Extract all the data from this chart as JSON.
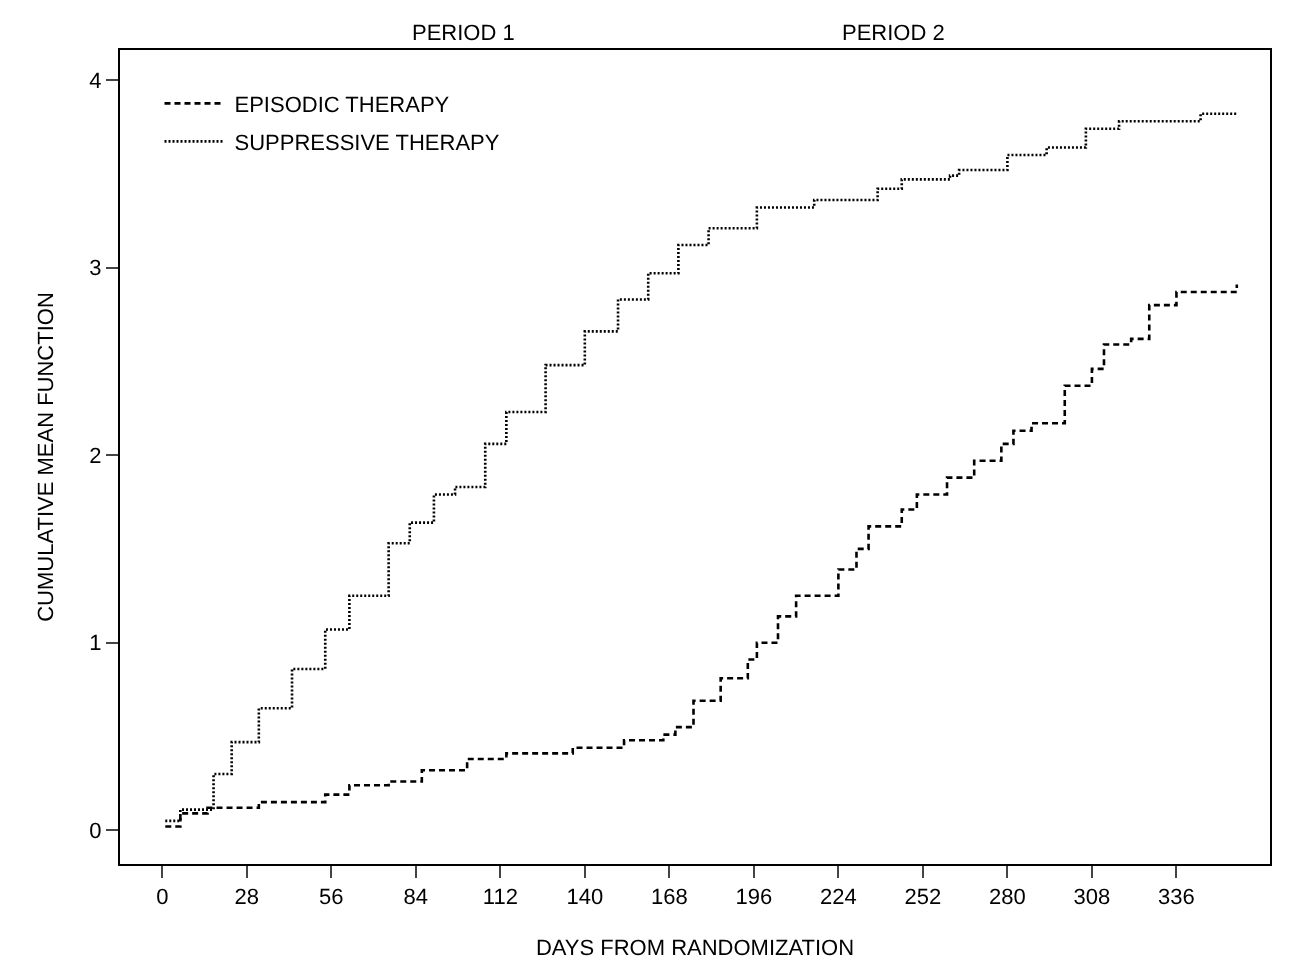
{
  "chart_data": {
    "type": "step",
    "xlabel": "DAYS FROM RANDOMIZATION",
    "ylabel": "CUMULATIVE MEAN FUNCTION",
    "annotations": [
      "PERIOD 1",
      "PERIOD 2"
    ],
    "xlim": [
      -14,
      367
    ],
    "ylim": [
      -0.18,
      4.16
    ],
    "xticks": [
      0,
      28,
      56,
      84,
      112,
      140,
      168,
      196,
      224,
      252,
      280,
      308,
      336
    ],
    "yticks": [
      0,
      1,
      2,
      3,
      4
    ],
    "legend": "top left",
    "marker": "none",
    "series": [
      {
        "name": "EPISODIC THERAPY",
        "color": "#000000",
        "line_style": "dashed",
        "x": [
          1,
          6,
          15,
          32,
          54,
          62,
          75,
          86,
          101,
          114,
          136,
          153,
          166,
          170,
          176,
          185,
          194,
          197,
          204,
          210,
          224,
          230,
          234,
          245,
          250,
          260,
          269,
          278,
          282,
          288,
          299,
          308,
          312,
          321,
          327,
          336,
          356
        ],
        "values": [
          0.02,
          0.09,
          0.12,
          0.15,
          0.19,
          0.24,
          0.26,
          0.32,
          0.38,
          0.41,
          0.44,
          0.48,
          0.51,
          0.55,
          0.69,
          0.81,
          0.91,
          1.0,
          1.14,
          1.25,
          1.39,
          1.5,
          1.62,
          1.71,
          1.79,
          1.88,
          1.97,
          2.06,
          2.13,
          2.17,
          2.37,
          2.46,
          2.59,
          2.62,
          2.8,
          2.87,
          2.91
        ]
      },
      {
        "name": "SUPPRESSIVE THERAPY",
        "color": "#000000",
        "line_style": "dotted",
        "x": [
          1,
          6,
          17,
          23,
          32,
          43,
          54,
          62,
          75,
          82,
          90,
          97,
          107,
          114,
          127,
          140,
          151,
          161,
          171,
          181,
          197,
          216,
          237,
          245,
          261,
          264,
          280,
          293,
          306,
          317,
          344,
          356
        ],
        "values": [
          0.05,
          0.11,
          0.3,
          0.47,
          0.65,
          0.86,
          1.07,
          1.25,
          1.53,
          1.64,
          1.79,
          1.83,
          2.06,
          2.23,
          2.48,
          2.66,
          2.83,
          2.97,
          3.12,
          3.21,
          3.32,
          3.36,
          3.42,
          3.47,
          3.49,
          3.52,
          3.6,
          3.64,
          3.74,
          3.78,
          3.82,
          3.82
        ]
      }
    ]
  }
}
